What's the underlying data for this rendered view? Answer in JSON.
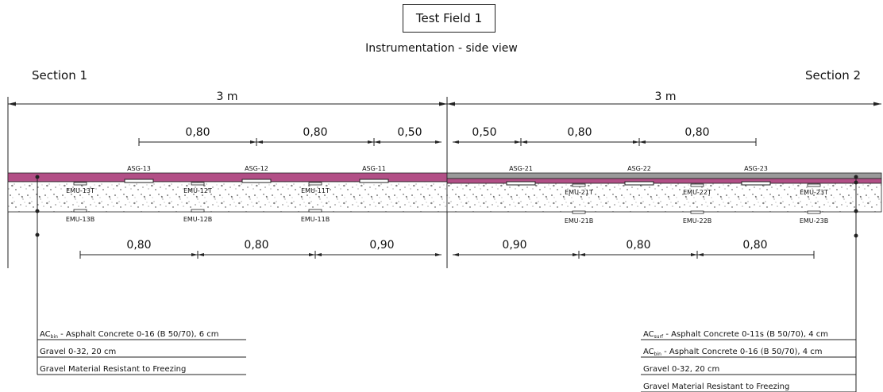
{
  "title": "Test Field 1",
  "subtitle": "Instrumentation - side view",
  "section1": "Section 1",
  "section2": "Section 2",
  "span_left": "3 m",
  "span_right": "3 m",
  "top_dims_left": [
    "0,80",
    "0,80",
    "0,50"
  ],
  "top_dims_right": [
    "0,50",
    "0,80",
    "0,80"
  ],
  "bottom_dims_left": [
    "0,80",
    "0,80",
    "0,90"
  ],
  "bottom_dims_right": [
    "0,90",
    "0,80",
    "0,80"
  ],
  "asg_left": [
    "ASG-13",
    "ASG-12",
    "ASG-11"
  ],
  "asg_right": [
    "ASG-21",
    "ASG-22",
    "ASG-23"
  ],
  "emu_top_left": [
    "EMU-13T",
    "EMU-12T",
    "EMU-11T"
  ],
  "emu_bottom_left": [
    "EMU-13B",
    "EMU-12B",
    "EMU-11B"
  ],
  "emu_top_right": [
    "EMU-21T",
    "EMU-22T",
    "EMU-23T"
  ],
  "emu_bottom_right": [
    "EMU-21B",
    "EMU-22B",
    "EMU-23B"
  ],
  "legend_left": {
    "l1_ac": "AC",
    "l1_sub": "bin",
    "l1_rest": " - Asphalt Concrete 0-16 (B 50/70), 6 cm",
    "l2": "Gravel 0-32, 20 cm",
    "l3": "Gravel Material Resistant to Freezing"
  },
  "legend_right": {
    "l1_ac": "AC",
    "l1_sub": "surf",
    "l1_rest": " - Asphalt Concrete 0-11s (B 50/70), 4 cm",
    "l2_ac": "AC",
    "l2_sub": "bin",
    "l2_rest": " - Asphalt Concrete 0-16 (B 50/70), 4 cm",
    "l3": "Gravel 0-32, 20 cm",
    "l4": "Gravel Material Resistant to Freezing"
  },
  "colors": {
    "asphalt_left": "#b24f86",
    "asphalt_right_top": "#9a9a9a",
    "asphalt_right_bottom": "#b24f86"
  }
}
